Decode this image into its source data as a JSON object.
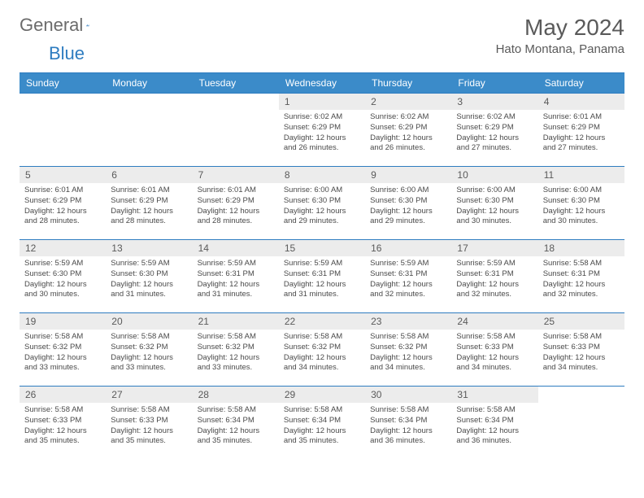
{
  "logo": {
    "text1": "General",
    "text2": "Blue",
    "icon_color": "#2e7cc0",
    "text1_color": "#6b6b6b"
  },
  "title": "May 2024",
  "location": "Hato Montana, Panama",
  "colors": {
    "header_bg": "#3b8bc9",
    "border": "#2e7cc0",
    "daynum_bg": "#ececec",
    "text": "#5a5a5a"
  },
  "day_headers": [
    "Sunday",
    "Monday",
    "Tuesday",
    "Wednesday",
    "Thursday",
    "Friday",
    "Saturday"
  ],
  "weeks": [
    [
      null,
      null,
      null,
      {
        "n": "1",
        "sr": "6:02 AM",
        "ss": "6:29 PM",
        "dl": "12 hours and 26 minutes."
      },
      {
        "n": "2",
        "sr": "6:02 AM",
        "ss": "6:29 PM",
        "dl": "12 hours and 26 minutes."
      },
      {
        "n": "3",
        "sr": "6:02 AM",
        "ss": "6:29 PM",
        "dl": "12 hours and 27 minutes."
      },
      {
        "n": "4",
        "sr": "6:01 AM",
        "ss": "6:29 PM",
        "dl": "12 hours and 27 minutes."
      }
    ],
    [
      {
        "n": "5",
        "sr": "6:01 AM",
        "ss": "6:29 PM",
        "dl": "12 hours and 28 minutes."
      },
      {
        "n": "6",
        "sr": "6:01 AM",
        "ss": "6:29 PM",
        "dl": "12 hours and 28 minutes."
      },
      {
        "n": "7",
        "sr": "6:01 AM",
        "ss": "6:29 PM",
        "dl": "12 hours and 28 minutes."
      },
      {
        "n": "8",
        "sr": "6:00 AM",
        "ss": "6:30 PM",
        "dl": "12 hours and 29 minutes."
      },
      {
        "n": "9",
        "sr": "6:00 AM",
        "ss": "6:30 PM",
        "dl": "12 hours and 29 minutes."
      },
      {
        "n": "10",
        "sr": "6:00 AM",
        "ss": "6:30 PM",
        "dl": "12 hours and 30 minutes."
      },
      {
        "n": "11",
        "sr": "6:00 AM",
        "ss": "6:30 PM",
        "dl": "12 hours and 30 minutes."
      }
    ],
    [
      {
        "n": "12",
        "sr": "5:59 AM",
        "ss": "6:30 PM",
        "dl": "12 hours and 30 minutes."
      },
      {
        "n": "13",
        "sr": "5:59 AM",
        "ss": "6:30 PM",
        "dl": "12 hours and 31 minutes."
      },
      {
        "n": "14",
        "sr": "5:59 AM",
        "ss": "6:31 PM",
        "dl": "12 hours and 31 minutes."
      },
      {
        "n": "15",
        "sr": "5:59 AM",
        "ss": "6:31 PM",
        "dl": "12 hours and 31 minutes."
      },
      {
        "n": "16",
        "sr": "5:59 AM",
        "ss": "6:31 PM",
        "dl": "12 hours and 32 minutes."
      },
      {
        "n": "17",
        "sr": "5:59 AM",
        "ss": "6:31 PM",
        "dl": "12 hours and 32 minutes."
      },
      {
        "n": "18",
        "sr": "5:58 AM",
        "ss": "6:31 PM",
        "dl": "12 hours and 32 minutes."
      }
    ],
    [
      {
        "n": "19",
        "sr": "5:58 AM",
        "ss": "6:32 PM",
        "dl": "12 hours and 33 minutes."
      },
      {
        "n": "20",
        "sr": "5:58 AM",
        "ss": "6:32 PM",
        "dl": "12 hours and 33 minutes."
      },
      {
        "n": "21",
        "sr": "5:58 AM",
        "ss": "6:32 PM",
        "dl": "12 hours and 33 minutes."
      },
      {
        "n": "22",
        "sr": "5:58 AM",
        "ss": "6:32 PM",
        "dl": "12 hours and 34 minutes."
      },
      {
        "n": "23",
        "sr": "5:58 AM",
        "ss": "6:32 PM",
        "dl": "12 hours and 34 minutes."
      },
      {
        "n": "24",
        "sr": "5:58 AM",
        "ss": "6:33 PM",
        "dl": "12 hours and 34 minutes."
      },
      {
        "n": "25",
        "sr": "5:58 AM",
        "ss": "6:33 PM",
        "dl": "12 hours and 34 minutes."
      }
    ],
    [
      {
        "n": "26",
        "sr": "5:58 AM",
        "ss": "6:33 PM",
        "dl": "12 hours and 35 minutes."
      },
      {
        "n": "27",
        "sr": "5:58 AM",
        "ss": "6:33 PM",
        "dl": "12 hours and 35 minutes."
      },
      {
        "n": "28",
        "sr": "5:58 AM",
        "ss": "6:34 PM",
        "dl": "12 hours and 35 minutes."
      },
      {
        "n": "29",
        "sr": "5:58 AM",
        "ss": "6:34 PM",
        "dl": "12 hours and 35 minutes."
      },
      {
        "n": "30",
        "sr": "5:58 AM",
        "ss": "6:34 PM",
        "dl": "12 hours and 36 minutes."
      },
      {
        "n": "31",
        "sr": "5:58 AM",
        "ss": "6:34 PM",
        "dl": "12 hours and 36 minutes."
      },
      null
    ]
  ],
  "labels": {
    "sunrise": "Sunrise: ",
    "sunset": "Sunset: ",
    "daylight": "Daylight: "
  }
}
